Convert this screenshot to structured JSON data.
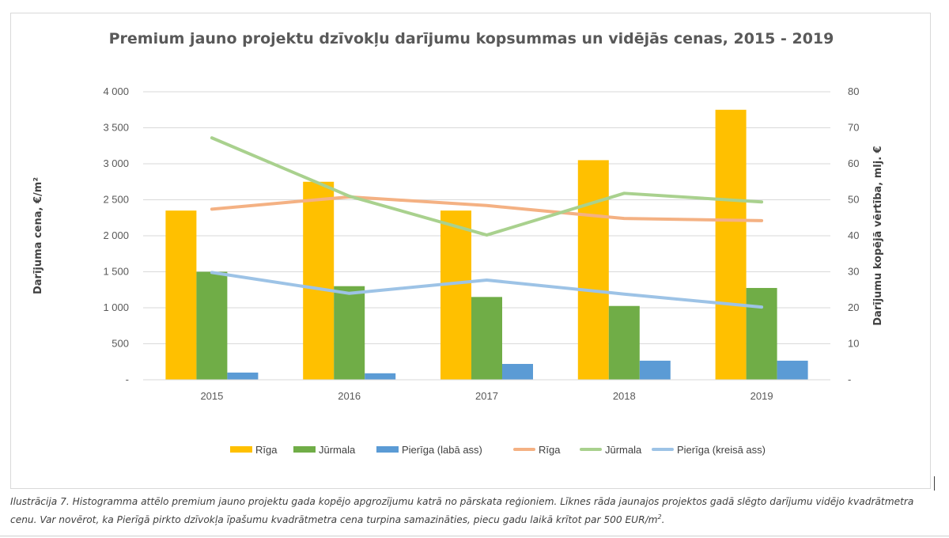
{
  "chart_data": {
    "type": "bar",
    "title": "Premium jauno projektu dzīvokļu darījumu kopsummas un vidējās cenas, 2015 - 2019",
    "categories": [
      "2015",
      "2016",
      "2017",
      "2018",
      "2019"
    ],
    "left_axis": {
      "label": "Darījuma cena, €/m²",
      "range": [
        0,
        4000
      ],
      "ticks": [
        0,
        500,
        1000,
        1500,
        2000,
        2500,
        3000,
        3500,
        4000
      ],
      "tick_labels": [
        "-",
        "500",
        "1 000",
        "1 500",
        "2 000",
        "2 500",
        "3 000",
        "3 500",
        "4 000"
      ]
    },
    "right_axis": {
      "label": "Darījumu kopējā vērtība, mlj. €",
      "range": [
        0,
        80
      ],
      "ticks": [
        0,
        10,
        20,
        30,
        40,
        50,
        60,
        70,
        80
      ],
      "tick_labels": [
        "-",
        "10",
        "20",
        "30",
        "40",
        "50",
        "60",
        "70",
        "80"
      ]
    },
    "grid": true,
    "legend_position": "bottom",
    "bar_series": [
      {
        "name": "Rīga",
        "axis": "right",
        "color": "#FFC000",
        "values": [
          47,
          55,
          47,
          61,
          75
        ]
      },
      {
        "name": "Jūrmala",
        "axis": "right",
        "color": "#70AD47",
        "values": [
          30,
          26,
          23,
          20.5,
          25.5
        ]
      },
      {
        "name": "Pierīga (labā ass)",
        "axis": "right",
        "color": "#5B9BD5",
        "values": [
          2,
          1.8,
          4.4,
          5.3,
          5.3
        ]
      }
    ],
    "line_series": [
      {
        "name": "Rīga",
        "axis": "left",
        "color": "#F4B183",
        "values": [
          2370,
          2540,
          2420,
          2240,
          2210
        ]
      },
      {
        "name": "Jūrmala",
        "axis": "left",
        "color": "#A9D18E",
        "values": [
          3360,
          2550,
          2010,
          2590,
          2470
        ]
      },
      {
        "name": "Pierīga (kreisā ass)",
        "axis": "left",
        "color": "#9DC3E6",
        "values": [
          1490,
          1200,
          1385,
          1190,
          1010
        ]
      }
    ]
  },
  "caption": {
    "text": "Ilustrācija 7. Histogramma attēlo premium jauno projektu gada kopējo apgrozījumu katrā no pārskata reģioniem. Līknes rāda jaunajos projektos gadā slēgto darījumu vidējo kvadrātmetra cenu. Var novērot, ka Pierīgā pirkto dzīvokļa īpašumu kvadrātmetra cena turpina samazināties, piecu gadu laikā krītot par 500 EUR/m",
    "superscript": "2",
    "suffix": "."
  }
}
